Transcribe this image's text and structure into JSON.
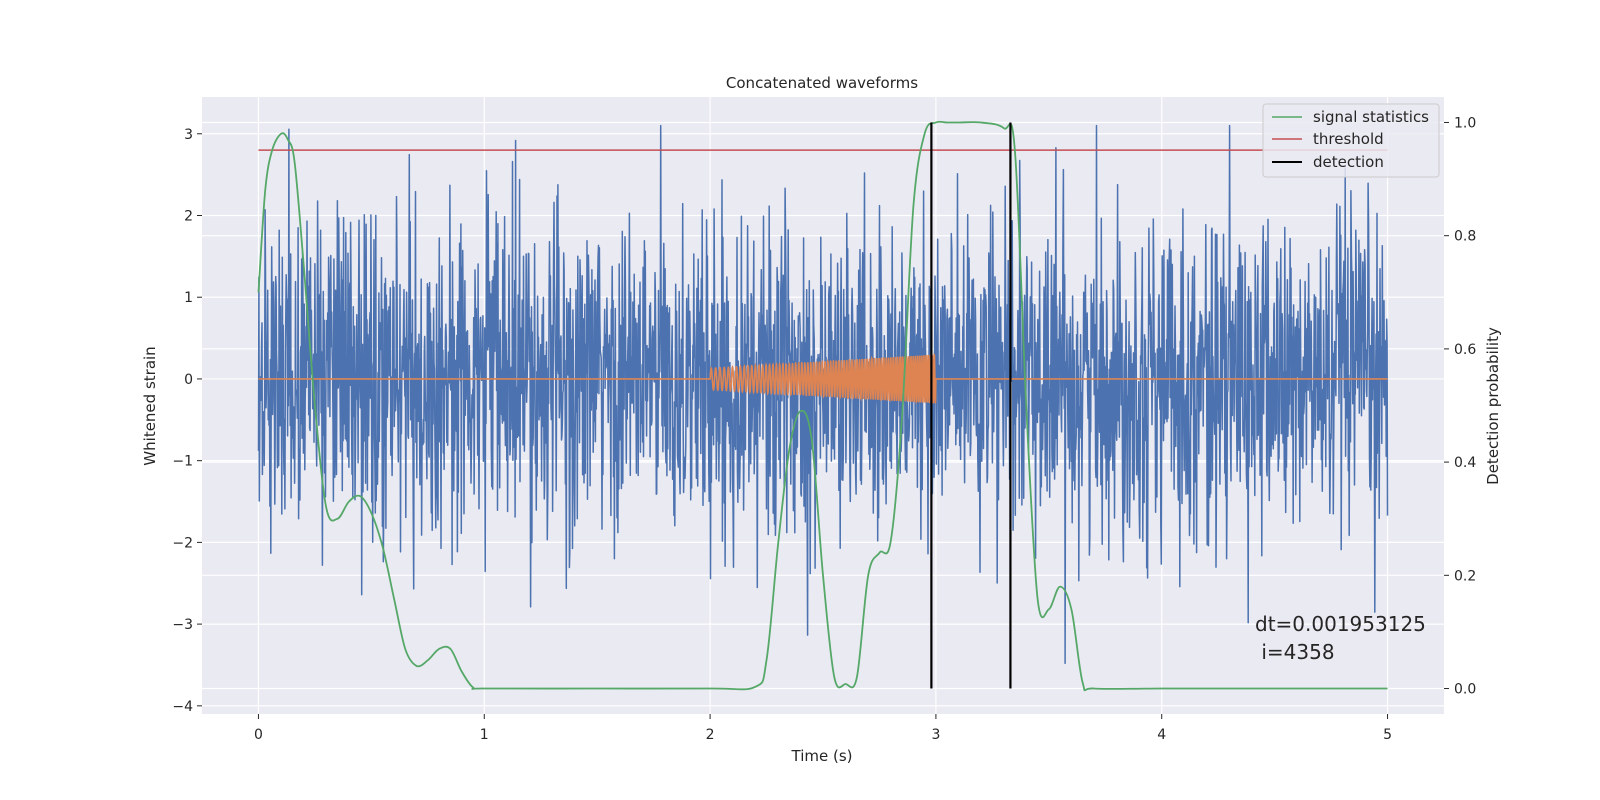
{
  "chart_data": {
    "type": "line",
    "title": "Concatenated waveforms",
    "xlabel": "Time (s)",
    "ylabel": "Whitened strain",
    "y2label": "Detection probability",
    "xlim": [
      -0.25,
      5.25
    ],
    "ylim": [
      -4.1,
      3.45
    ],
    "y2lim": [
      -0.045,
      1.045
    ],
    "grid": true,
    "legend_position": "top-right",
    "x_ticks": [
      "0",
      "1",
      "2",
      "3",
      "4",
      "5"
    ],
    "y_ticks": [
      "3",
      "2",
      "1",
      "0",
      "−1",
      "−2",
      "−3",
      "−4"
    ],
    "y2_ticks": [
      "1.0",
      "0.8",
      "0.6",
      "0.4",
      "0.2",
      "0.0"
    ],
    "colors": {
      "noise": "#4c72b0",
      "waveform": "#dd8452",
      "statistic": "#55a868",
      "threshold": "#c44e52",
      "detection": "#000000",
      "axes_bg": "#eaeaf2"
    },
    "series": [
      {
        "name": "",
        "description_axis": "left",
        "x_range": [
          0,
          5
        ],
        "dt": 0.001953125,
        "peak_values_approx": [
          3.1,
          3.1,
          3.1,
          3.0,
          3.0,
          3.0,
          2.9,
          2.9
        ],
        "min_values_approx": [
          -3.8,
          -3.75,
          -3.3,
          -3.2,
          -3.1,
          -3.05,
          -2.95,
          -2.9
        ]
      },
      {
        "name": "",
        "description_axis": "left",
        "x_range": [
          2.0,
          3.0
        ],
        "amplitude_start": 0.13,
        "amplitude_end": 0.3
      },
      {
        "name": "signal statistics",
        "axis": "right",
        "x": [
          0.0,
          0.03,
          0.06,
          0.1,
          0.13,
          0.16,
          0.2,
          0.25,
          0.3,
          0.35,
          0.4,
          0.45,
          0.5,
          0.55,
          0.6,
          0.65,
          0.7,
          0.75,
          0.8,
          0.85,
          0.9,
          0.95,
          1.0,
          1.5,
          2.0,
          2.2,
          2.25,
          2.3,
          2.35,
          2.4,
          2.45,
          2.5,
          2.55,
          2.6,
          2.65,
          2.7,
          2.75,
          2.8,
          2.85,
          2.9,
          2.95,
          3.0,
          3.05,
          3.1,
          3.2,
          3.3,
          3.35,
          3.4,
          3.45,
          3.5,
          3.55,
          3.6,
          3.65,
          3.7,
          4.0,
          4.5,
          5.0
        ],
        "y": [
          0.7,
          0.88,
          0.95,
          0.98,
          0.97,
          0.93,
          0.75,
          0.5,
          0.32,
          0.3,
          0.33,
          0.34,
          0.31,
          0.25,
          0.16,
          0.07,
          0.04,
          0.05,
          0.07,
          0.07,
          0.03,
          0.002,
          0.0,
          0.0,
          0.0,
          0.003,
          0.05,
          0.25,
          0.42,
          0.49,
          0.44,
          0.2,
          0.02,
          0.008,
          0.02,
          0.2,
          0.24,
          0.26,
          0.48,
          0.85,
          0.98,
          1.0,
          1.0,
          1.0,
          1.0,
          0.99,
          0.95,
          0.5,
          0.16,
          0.14,
          0.18,
          0.14,
          0.01,
          0.0,
          0.0,
          0.0,
          0.0
        ]
      },
      {
        "name": "threshold",
        "axis": "left",
        "x": [
          0,
          5
        ],
        "y": [
          2.8,
          2.8
        ]
      },
      {
        "name": "detection",
        "axis": "right",
        "x": [
          2.98,
          3.33
        ],
        "y_span": [
          0.0,
          1.0
        ]
      }
    ],
    "annotation": {
      "line1": "dt=0.001953125",
      "line2": " i=4358"
    }
  }
}
